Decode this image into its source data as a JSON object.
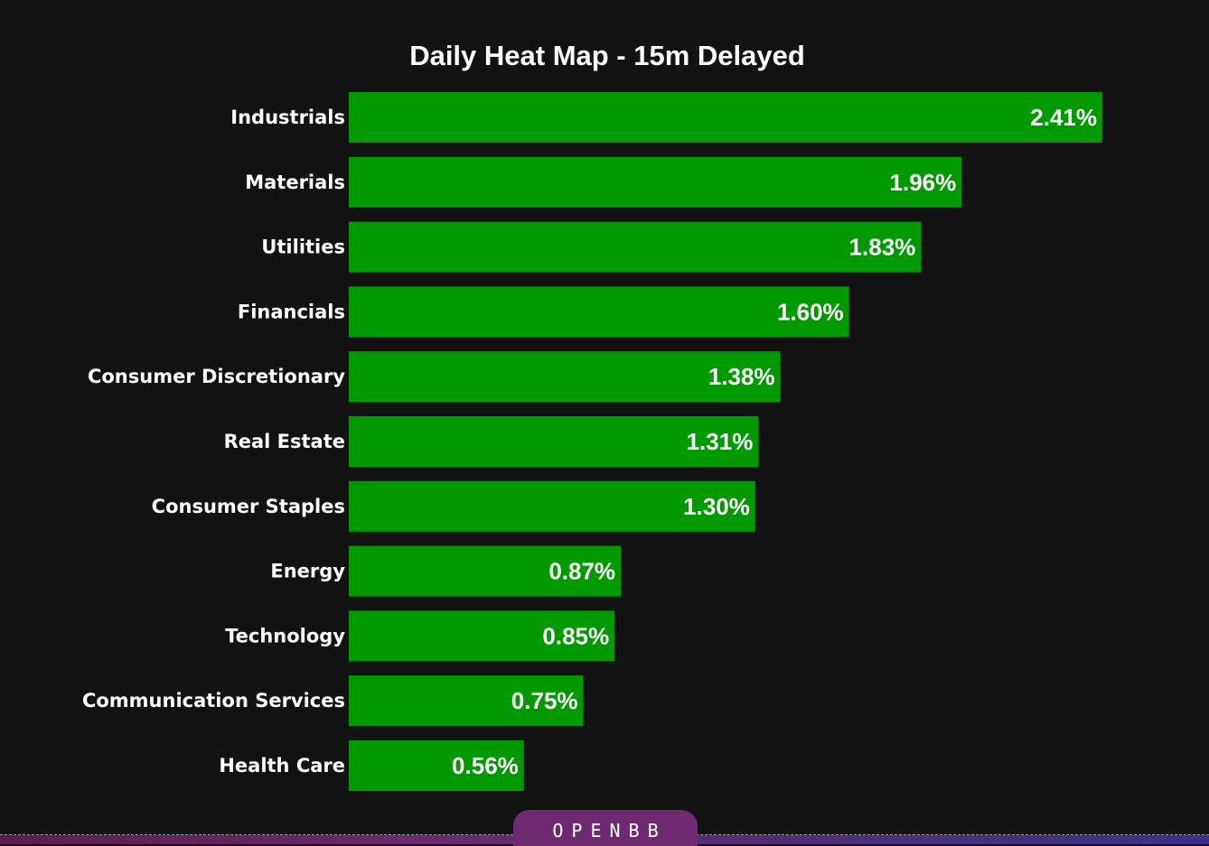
{
  "chart_data": {
    "type": "bar",
    "orientation": "horizontal",
    "title": "Daily Heat Map - 15m Delayed",
    "xlabel": "",
    "ylabel": "",
    "categories": [
      "Industrials",
      "Materials",
      "Utilities",
      "Financials",
      "Consumer Discretionary",
      "Real Estate",
      "Consumer Staples",
      "Energy",
      "Technology",
      "Communication Services",
      "Health Care"
    ],
    "values": [
      2.41,
      1.96,
      1.83,
      1.6,
      1.38,
      1.31,
      1.3,
      0.87,
      0.85,
      0.75,
      0.56
    ],
    "value_labels": [
      "2.41%",
      "1.96%",
      "1.83%",
      "1.60%",
      "1.38%",
      "1.31%",
      "1.30%",
      "0.87%",
      "0.85%",
      "0.75%",
      "0.56%"
    ],
    "unit": "%",
    "xlim": [
      0,
      2.41
    ],
    "grid": false,
    "colors": {
      "bar": "#009a00",
      "background": "#121212",
      "text": "#ffffff"
    }
  },
  "footer": {
    "brand": "OPENBB",
    "tab_color": "#6e2a70"
  }
}
